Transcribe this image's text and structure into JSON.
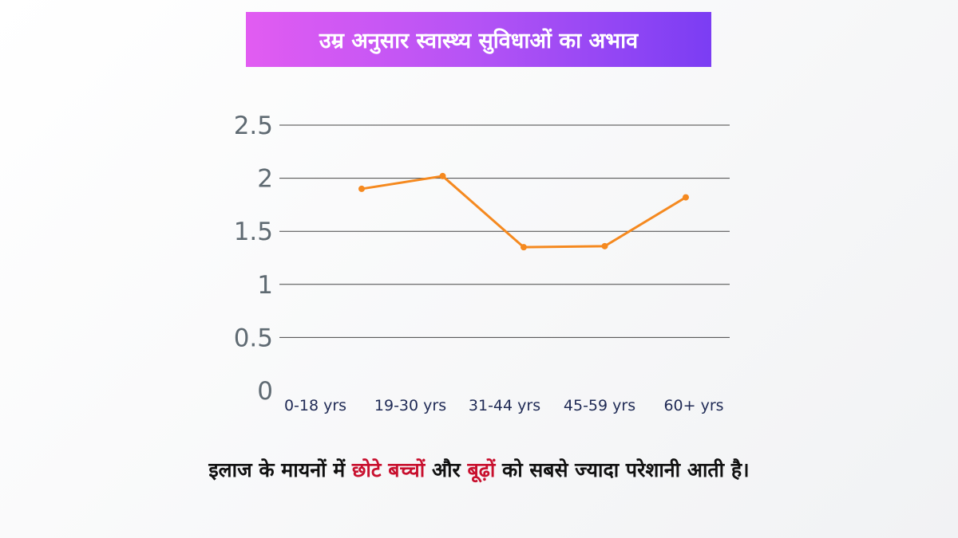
{
  "colors": {
    "line": "#f5891f",
    "grid": "#444444",
    "highlight": "#c8102e",
    "title_gradient": [
      "#e25cf2",
      "#7b3df3"
    ]
  },
  "title": "उम्र अनुसार स्वास्थ्य सुविधाओं का अभाव",
  "caption": {
    "part1": "इलाज के मायनों में ",
    "highlight1": "छोटे बच्चों",
    "part2": " और ",
    "highlight2": "बूढ़ों",
    "part3": " को सबसे ज्यादा परेशानी आती है।"
  },
  "chart_data": {
    "type": "line",
    "categories": [
      "0-18 yrs",
      "19-30 yrs",
      "31-44 yrs",
      "45-59 yrs",
      "60+ yrs"
    ],
    "series": [
      {
        "values": [
          1.9,
          2.02,
          1.35,
          1.36,
          1.82
        ]
      }
    ],
    "y_ticks": [
      "0",
      "0.5",
      "1",
      "1.5",
      "2",
      "2.5"
    ],
    "ylim": [
      0,
      2.5
    ],
    "grid": true,
    "legend": "none"
  }
}
